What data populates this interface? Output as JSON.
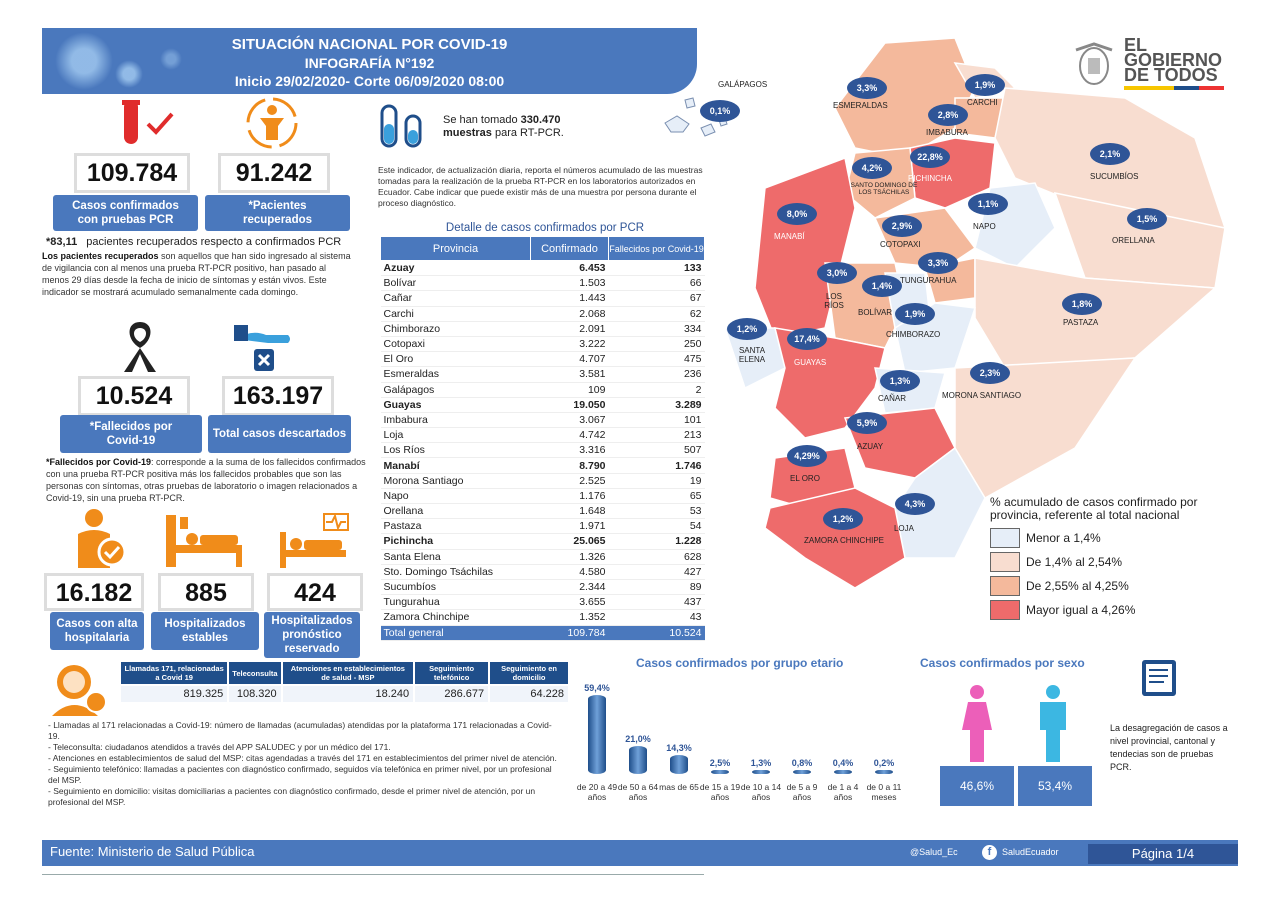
{
  "header": {
    "line1": "SITUACIÓN NACIONAL POR  COVID-19",
    "line2": "INFOGRAFÍA N°192",
    "line3": "Inicio 29/02/2020- Corte 06/09/2020 08:00"
  },
  "gov_logo": {
    "line1": "EL",
    "line2": "GOBIERNO",
    "line3": "DE TODOS"
  },
  "stats": {
    "confirmados": {
      "value": "109.784",
      "label": "Casos confirmados con pruebas PCR"
    },
    "recuperados": {
      "value": "91.242",
      "label": "*Pacientes recuperados"
    },
    "fallecidos": {
      "value": "10.524",
      "label": "*Fallecidos por Covid-19"
    },
    "descartados": {
      "value": "163.197",
      "label": "Total casos descartados"
    },
    "alta": {
      "value": "16.182",
      "label": "Casos con alta hospitalaria"
    },
    "estables": {
      "value": "885",
      "label": "Hospitalizados estables"
    },
    "reservado": {
      "value": "424",
      "label": "Hospitalizados pronóstico reservado"
    }
  },
  "recovered_note": {
    "pct": "83,11",
    "rest": "pacientes recuperados respecto a confirmados PCR",
    "p_bold": "Los pacientes recuperados",
    "p_rest": " son aquellos que han sido ingresado al sistema de vigilancia con al menos una prueba RT-PCR positivo, han pasado al menos 29 días desde la fecha de inicio de síntomas y están vivos. Este indicador se mostrará acumulado semanalmente cada domingo."
  },
  "deaths_note": {
    "bold": "*Fallecidos por Covid-19",
    "rest": ": corresponde a la suma de los fallecidos confirmados con una prueba RT-PCR positiva más los fallecidos probables que son las personas con síntomas, otras pruebas de laboratorio o imagen relacionados a Covid-19, sin una prueba RT-PCR."
  },
  "samples": {
    "pre": "Se han tomado ",
    "value": "330.470",
    "line2": "muestras",
    "post": "  para RT-PCR.",
    "note": "Este indicador, de actualización diaria, reporta el números acumulado de las muestras tomadas para la realización de la prueba RT-PCR en los laboratorios autorizados en Ecuador. Cabe indicar que puede existir más de una muestra por persona durante el proceso diagnóstico."
  },
  "table": {
    "title": "Detalle de casos confirmados por PCR",
    "headers": [
      "Provincia",
      "Confirmado",
      "Fallecidos por Covid-19"
    ],
    "rows": [
      [
        "Azuay",
        "6.453",
        "133"
      ],
      [
        "Bolívar",
        "1.503",
        "66"
      ],
      [
        "Cañar",
        "1.443",
        "67"
      ],
      [
        "Carchi",
        "2.068",
        "62"
      ],
      [
        "Chimborazo",
        "2.091",
        "334"
      ],
      [
        "Cotopaxi",
        "3.222",
        "250"
      ],
      [
        "El Oro",
        "4.707",
        "475"
      ],
      [
        "Esmeraldas",
        "3.581",
        "236"
      ],
      [
        "Galápagos",
        "109",
        "2"
      ],
      [
        "Guayas",
        "19.050",
        "3.289"
      ],
      [
        "Imbabura",
        "3.067",
        "101"
      ],
      [
        "Loja",
        "4.742",
        "213"
      ],
      [
        "Los Ríos",
        "3.316",
        "507"
      ],
      [
        "Manabí",
        "8.790",
        "1.746"
      ],
      [
        "Morona Santiago",
        "2.525",
        "19"
      ],
      [
        "Napo",
        "1.176",
        "65"
      ],
      [
        "Orellana",
        "1.648",
        "53"
      ],
      [
        "Pastaza",
        "1.971",
        "54"
      ],
      [
        "Pichincha",
        "25.065",
        "1.228"
      ],
      [
        "Santa Elena",
        "1.326",
        "628"
      ],
      [
        "Sto. Domingo Tsáchilas",
        "4.580",
        "427"
      ],
      [
        "Sucumbíos",
        "2.344",
        "89"
      ],
      [
        "Tungurahua",
        "3.655",
        "437"
      ],
      [
        "Zamora Chinchipe",
        "1.352",
        "43"
      ]
    ],
    "bold_rows": [
      "Azuay",
      "Guayas",
      "Manabí",
      "Pichincha"
    ],
    "total": [
      "Total general",
      "109.784",
      "10.524"
    ]
  },
  "calls": {
    "headers": [
      "Llamadas 171, relacionadas a Covid 19",
      "Teleconsulta",
      "Atenciones en establecimientos de salud - MSP",
      "Seguimiento telefónico",
      "Seguimiento en domicilio"
    ],
    "values": [
      "819.325",
      "108.320",
      "18.240",
      "286.677",
      "64.228"
    ],
    "notes": [
      "- Llamadas al 171 relacionadas a Covid-19: número de llamadas (acumuladas) atendidas por la plataforma 171 relacionadas a Covid-19.",
      "- Teleconsulta: ciudadanos atendidos a través del APP SALUDEC y por un médico del 171.",
      "- Atenciones en establecimientos de salud del MSP:  citas agendadas a través del 171 en establecimientos del primer nivel de atención.",
      "- Seguimiento telefónico: llamadas a pacientes con diagnóstico confirmado, seguidos vía telefónica en primer nivel, por un profesional del MSP.",
      "- Seguimiento en domicilio: visitas domiciliarias a pacientes con diagnóstico confirmado, desde el primer nivel de atención, por un profesional del MSP."
    ]
  },
  "chart_data": [
    {
      "type": "bar",
      "title": "Casos confirmados por grupo etario",
      "categories": [
        "de 20 a 49 años",
        "de 50 a 64 años",
        "mas de 65",
        "de 15 a 19 años",
        "de 10 a 14 años",
        "de 5 a 9 años",
        "de 1 a 4 años",
        "de 0 a 11 meses"
      ],
      "values": [
        59.4,
        21.0,
        14.3,
        2.5,
        1.3,
        0.8,
        0.4,
        0.2
      ],
      "labels": [
        "59,4%",
        "21,0%",
        "14,3%",
        "2,5%",
        "1,3%",
        "0,8%",
        "0,4%",
        "0,2%"
      ]
    },
    {
      "type": "bar",
      "title": "Casos confirmados por sexo",
      "categories": [
        "Mujeres",
        "Hombres"
      ],
      "values": [
        46.6,
        53.4
      ],
      "labels": [
        "46,6%",
        "53,4%"
      ],
      "colors": [
        "#ec5fb9",
        "#3cb7e2"
      ]
    }
  ],
  "sex_note": "La desagregación de casos a nivel provincial, cantonal y tendecias son de pruebas PCR.",
  "map": {
    "provinces": [
      {
        "name": "GALÁPAGOS",
        "pct": "0,1%"
      },
      {
        "name": "ESMERALDAS",
        "pct": "3,3%"
      },
      {
        "name": "CARCHI",
        "pct": "1,9%"
      },
      {
        "name": "IMBABURA",
        "pct": "2,8%"
      },
      {
        "name": "SUCUMBÍOS",
        "pct": "2,1%"
      },
      {
        "name": "PICHINCHA",
        "pct": "22,8%"
      },
      {
        "name": "SANTO DOMINGO DE LOS TSÁCHILAS",
        "pct": "4,2%"
      },
      {
        "name": "MANABÍ",
        "pct": "8,0%"
      },
      {
        "name": "NAPO",
        "pct": "1,1%"
      },
      {
        "name": "ORELLANA",
        "pct": "1,5%"
      },
      {
        "name": "COTOPAXI",
        "pct": "2,9%"
      },
      {
        "name": "LOS RÍOS",
        "pct": "3,0%"
      },
      {
        "name": "TUNGURAHUA",
        "pct": "3,3%"
      },
      {
        "name": "BOLÍVAR",
        "pct": "1,4%"
      },
      {
        "name": "PASTAZA",
        "pct": "1,8%"
      },
      {
        "name": "SANTA ELENA",
        "pct": "1,2%"
      },
      {
        "name": "GUAYAS",
        "pct": "17,4%"
      },
      {
        "name": "CHIMBORAZO",
        "pct": "1,9%"
      },
      {
        "name": "CAÑAR",
        "pct": "1,3%"
      },
      {
        "name": "MORONA SANTIAGO",
        "pct": "2,3%"
      },
      {
        "name": "AZUAY",
        "pct": "5,9%"
      },
      {
        "name": "EL ORO",
        "pct": "4,29%"
      },
      {
        "name": "LOJA",
        "pct": "4,3%"
      },
      {
        "name": "ZAMORA CHINCHIPE",
        "pct": "1,2%"
      }
    ],
    "legend_title": "% acumulado de casos confirmado por provincia, referente al total nacional",
    "legend": [
      {
        "label": "Menor a 1,4%",
        "color": "#e6eef8"
      },
      {
        "label": "De 1,4% al 2,54%",
        "color": "#f8ddd0"
      },
      {
        "label": "De 2,55% al 4,25%",
        "color": "#f4b99c"
      },
      {
        "label": "Mayor igual a 4,26%",
        "color": "#ee6b6b"
      }
    ]
  },
  "footer": {
    "source_pre": "Fuente: ",
    "source": "Ministerio de Salud Pública",
    "twitter": "@Salud_Ec",
    "facebook": "SaludEcuador",
    "page": "Página 1/4"
  }
}
